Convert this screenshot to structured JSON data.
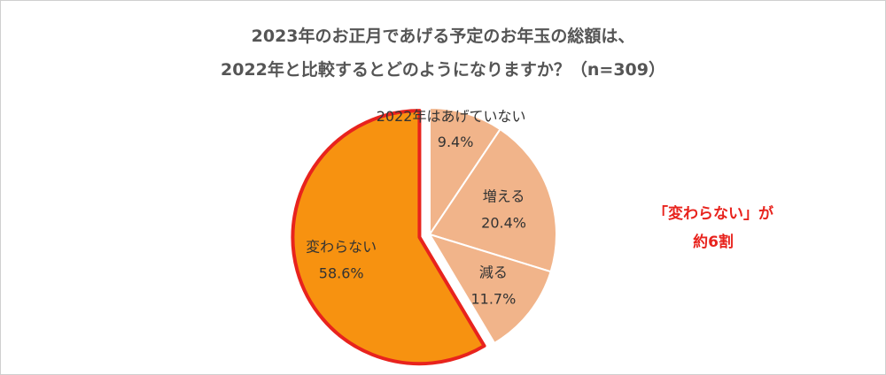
{
  "title": {
    "line1": "2023年のお正月であげる予定のお年玉の総額は、",
    "line2": "2022年と比較するとどのようになりますか？（n=309）"
  },
  "chart_data": {
    "type": "pie",
    "slices": [
      {
        "label": "2022年はあげていない",
        "percent_label": "9.4%",
        "value": 9.4,
        "color": "#f1b48a",
        "highlight": false
      },
      {
        "label": "増える",
        "percent_label": "20.4%",
        "value": 20.4,
        "color": "#f1b48a",
        "highlight": false
      },
      {
        "label": "減る",
        "percent_label": "11.7%",
        "value": 11.7,
        "color": "#f1b48a",
        "highlight": false
      },
      {
        "label": "変わらない",
        "percent_label": "58.6%",
        "value": 58.6,
        "color": "#f79210",
        "highlight": true
      }
    ],
    "highlight_outline_color": "#e8231d"
  },
  "callout": {
    "line1": "「変わらない」が",
    "line2": "約6割",
    "color": "#e8231d"
  }
}
